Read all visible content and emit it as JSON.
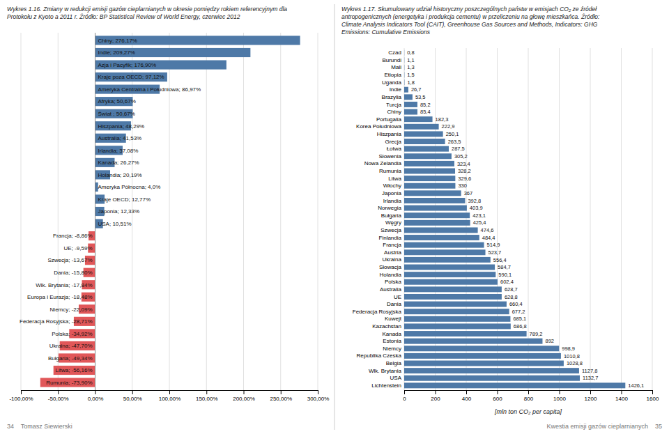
{
  "chart_data": [
    {
      "type": "bar",
      "orientation": "horizontal",
      "title": "Wykres 1.16. Zmiany w redukcji emisji gazów cieplarnianych w okresie pomiędzy rokiem referencyjnym dla\nProtokołu z Kyoto a 2011 r. Źródło: BP Statistical Review of World Energy, czerwiec 2012",
      "categories": [
        "Chiny",
        "Indie",
        "Azja i Pacyfik",
        "Kraje poza OECD",
        "Ameryka Centralna i Południowa",
        "Afryka",
        "Świat ",
        "Hiszpania",
        "Australia",
        "Irlandia",
        "Kanada",
        "Holandia",
        "Ameryka Północna",
        "Kraje OECD",
        "Japonia",
        "USA",
        "Francja",
        "UE",
        "Szwecja",
        "Dania",
        "Wlk. Brytania",
        "Europa i Eurazja",
        "Niemcy",
        "Federacja Rosyjska",
        "Polska",
        "Ukraina",
        "Bułgaria",
        "Litwa",
        "Rumunia"
      ],
      "values": [
        276.17,
        209.27,
        176.9,
        97.12,
        86.97,
        50.67,
        50.67,
        48.29,
        41.53,
        37.08,
        26.27,
        20.19,
        4.0,
        12.77,
        12.33,
        10.51,
        -8.86,
        -9.59,
        -13.67,
        -15.8,
        -17.84,
        -18.48,
        -22.09,
        -28.71,
        -34.92,
        -47.7,
        -49.34,
        -56.16,
        -73.9
      ],
      "value_labels": [
        "Chiny; 276,17%",
        "Indie; 209,27%",
        "Azja i Pacyfik; 176,90%",
        "Kraje poza OECD; 97,12%",
        "Ameryka Centralna i Południowa; 86,97%",
        "Afryka; 50,67%",
        "Świat ; 50,67%",
        "Hiszpania; 48,29%",
        "Australia; 41,53%",
        "Irlandia; 37,08%",
        "Kanada; 26,27%",
        "Holandia; 20,19%",
        "Ameryka Północna; 4,0%",
        "Kraje OECD; 12,77%",
        "Japonia; 12,33%",
        "USA; 10,51%",
        "Francja; -8,86%",
        "UE; -9,59%",
        "Szwecja; -13,67%",
        "Dania; -15,80%",
        "Wlk. Brytania; -17,84%",
        "Europa i Eurazja; -18,48%",
        "Niemcy; -22,09%",
        "Federacja Rosyjska; -28,71%",
        "Polska; -34,92%",
        "Ukraina; -47,70%",
        "Bułgaria; -49,34%",
        "Litwa; -56,16%",
        "Rumunia; -73,90%"
      ],
      "colors": [
        "#4e79a7",
        "#4e79a7",
        "#4e79a7",
        "#4e79a7",
        "#4e79a7",
        "#4e79a7",
        "#4e79a7",
        "#4e79a7",
        "#4e79a7",
        "#4e79a7",
        "#4e79a7",
        "#4e79a7",
        "#4e79a7",
        "#4e79a7",
        "#4e79a7",
        "#4e79a7",
        "#e15759",
        "#e15759",
        "#e15759",
        "#e15759",
        "#e15759",
        "#e15759",
        "#e15759",
        "#e15759",
        "#e15759",
        "#e15759",
        "#e15759",
        "#e15759",
        "#e15759"
      ],
      "xlim": [
        -100,
        300
      ],
      "xticks": [
        {
          "value": -100,
          "label": "-100,00%"
        },
        {
          "value": -50,
          "label": "-50,00%"
        },
        {
          "value": 0,
          "label": "0,00%"
        },
        {
          "value": 50,
          "label": "50,00%"
        },
        {
          "value": 100,
          "label": "100,00%"
        },
        {
          "value": 150,
          "label": "150,00%"
        },
        {
          "value": 200,
          "label": "200,00%"
        },
        {
          "value": 250,
          "label": "250,00%"
        },
        {
          "value": 300,
          "label": "300,00%"
        }
      ],
      "grid": true,
      "data_labels": true,
      "tick_labels": "x",
      "annotations": [
        "34    Tomasz Siewierski"
      ]
    },
    {
      "type": "bar",
      "orientation": "horizontal",
      "title": "Wykres 1.17. Skumulowany udział historyczny poszczególnych państw w emisjach CO₂ ze źródeł\nantropogenicznych (energetyka i produkcja cementu) w przeliczeniu na głowę mieszkańca. Źródło:\nClimate Analysis Indicators Tool (CAIT), Greenhouse Gas Sources and Methods, Indicators: GHG\nEmissions: Cumulative Emissions",
      "categories": [
        "Czad",
        "Burundi",
        "Mali",
        "Etiopia",
        "Uganda",
        "Indie",
        "Brazylia",
        "Turcja",
        "Chiny",
        "Portugalia",
        "Korea Południowa",
        "Hiszpania",
        "Grecja",
        "Łotwa",
        "Słowenia",
        "Nowa Zelandia",
        "Rumunia",
        "Litwa",
        "Włochy",
        "Japonia",
        "Irlandia",
        "Norwegia",
        "Bułgaria",
        "Węgry",
        "Szwecja",
        "Finlandia",
        "Francja",
        "Austria",
        "Ukraina",
        "Słowacja",
        "Holandia",
        "Polska",
        "Australia",
        "UE",
        "Dania",
        "Federacja Rosyjska",
        "Kuwejt",
        "Kazachstan",
        "Kanada",
        "Estonia",
        "Niemcy",
        "Republika Czeska",
        "Belgia",
        "Wlk. Brytania",
        "USA",
        "Lichtenstein"
      ],
      "values": [
        0.8,
        1.1,
        1.3,
        1.5,
        1.8,
        26.7,
        53.5,
        85.2,
        85.4,
        182.3,
        222.9,
        250.1,
        263.5,
        287.5,
        305.2,
        323.4,
        328.2,
        329.6,
        330,
        367,
        392.8,
        403.9,
        423.1,
        425.4,
        474.6,
        484.4,
        514.9,
        523.7,
        556.4,
        584.7,
        590.1,
        602.4,
        628.7,
        628.8,
        660.4,
        677.2,
        685.1,
        686.8,
        789.2,
        892,
        998.9,
        1010.8,
        1028.8,
        1127.8,
        1132.7,
        1426.1
      ],
      "value_labels": [
        "0,8",
        "1,1",
        "1,3",
        "1,5",
        "1,8",
        "26,7",
        "53,5",
        "85,2",
        "85,4",
        "182,3",
        "222,9",
        "250,1",
        "263,5",
        "287,5",
        "305,2",
        "323,4",
        "328,2",
        "329,6",
        "330",
        "367",
        "392,8",
        "403,9",
        "423,1",
        "425,4",
        "474,6",
        "484,4",
        "514,9",
        "523,7",
        "556,4",
        "584,7",
        "590,1",
        "602,4",
        "628,7",
        "628,8",
        "660,4",
        "677,2",
        "685,1",
        "686,8",
        "789,2",
        "892",
        "998,9",
        "1010,8",
        "1028,8",
        "1127,8",
        "1132,7",
        "1426,1"
      ],
      "color": "#4e79a7",
      "xlim": [
        0,
        1600
      ],
      "xticks": [
        0,
        200,
        400,
        600,
        800,
        1000,
        1200,
        1400,
        1600
      ],
      "xlabel": "[mln ton CO₂ per capita]",
      "grid": true,
      "data_labels": true,
      "annotations": [
        "Kwestia emisji gazów cieplarnianych    35"
      ]
    }
  ]
}
